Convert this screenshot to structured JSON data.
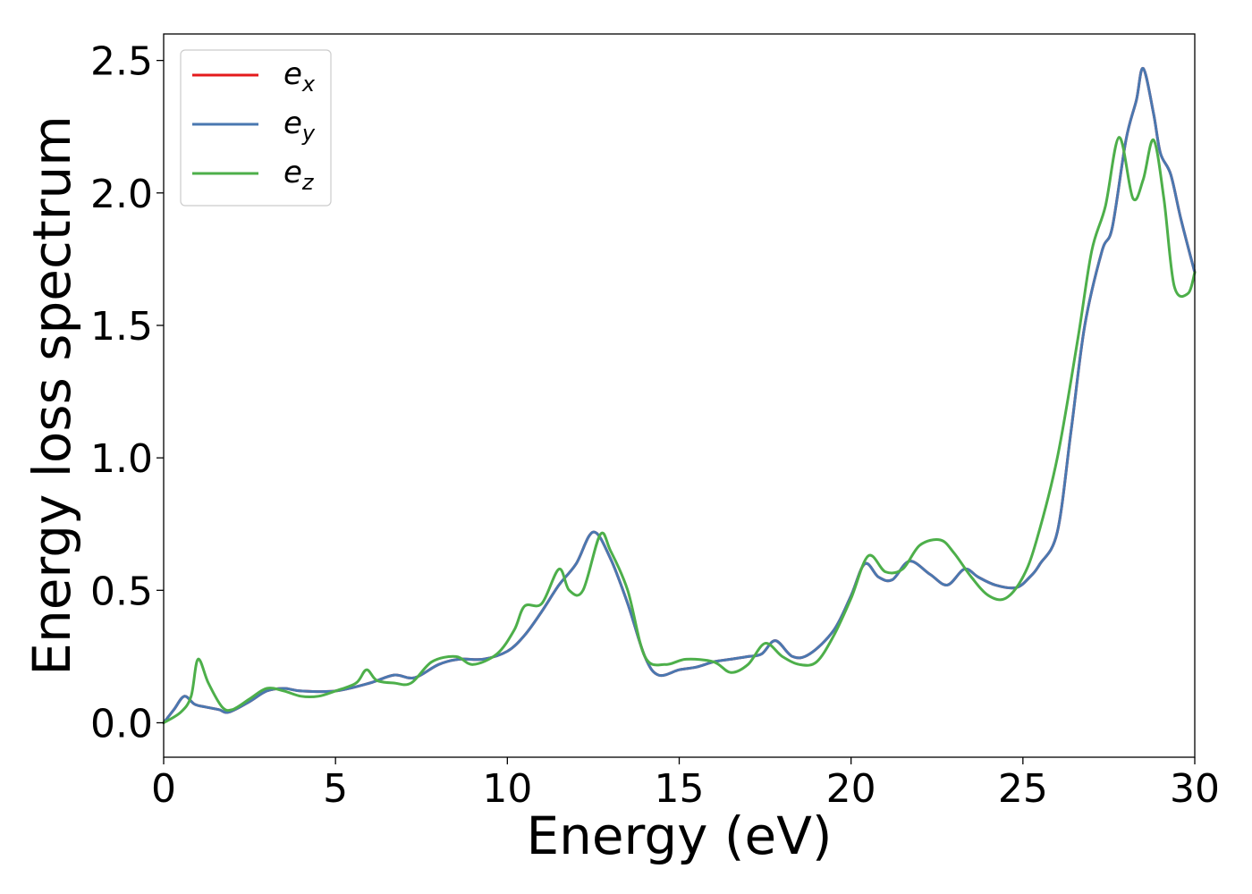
{
  "chart_data": {
    "type": "line",
    "xlabel": "Energy (eV)",
    "ylabel": "Energy loss spectrum",
    "xlim": [
      0,
      30
    ],
    "ylim": [
      -0.13,
      2.6
    ],
    "xticks": [
      0,
      5,
      10,
      15,
      20,
      25,
      30
    ],
    "xtick_labels": [
      "0",
      "5",
      "10",
      "15",
      "20",
      "25",
      "30"
    ],
    "yticks": [
      0.0,
      0.5,
      1.0,
      1.5,
      2.0,
      2.5
    ],
    "ytick_labels": [
      "0.0",
      "0.5",
      "1.0",
      "1.5",
      "2.0",
      "2.5"
    ],
    "grid": false,
    "legend_position": "top-left",
    "series": [
      {
        "name": "e_x",
        "legend_base": "e",
        "legend_sub": "x",
        "color": "#e41a1c",
        "x": [
          0,
          0.3,
          0.6,
          0.9,
          1.2,
          1.6,
          1.9,
          2.5,
          3.0,
          3.5,
          4.0,
          5.0,
          6.0,
          6.7,
          7.3,
          8.0,
          8.6,
          9.3,
          10.0,
          10.5,
          11.0,
          11.5,
          12.0,
          12.5,
          13.0,
          13.5,
          14.0,
          14.4,
          15.0,
          15.5,
          16.0,
          16.5,
          17.0,
          17.4,
          17.8,
          18.3,
          18.8,
          19.5,
          20.0,
          20.4,
          20.8,
          21.2,
          21.7,
          22.3,
          22.8,
          23.3,
          23.7,
          24.2,
          24.8,
          25.2,
          25.5,
          26.0,
          26.4,
          26.8,
          27.3,
          27.6,
          28.0,
          28.3,
          28.5,
          28.8,
          29.0,
          29.3,
          29.6,
          30.0
        ],
        "y": [
          0.0,
          0.05,
          0.1,
          0.07,
          0.06,
          0.05,
          0.04,
          0.08,
          0.12,
          0.13,
          0.12,
          0.12,
          0.15,
          0.18,
          0.17,
          0.22,
          0.24,
          0.24,
          0.27,
          0.33,
          0.42,
          0.52,
          0.6,
          0.72,
          0.62,
          0.45,
          0.25,
          0.18,
          0.2,
          0.21,
          0.23,
          0.24,
          0.25,
          0.26,
          0.31,
          0.25,
          0.26,
          0.35,
          0.48,
          0.6,
          0.55,
          0.54,
          0.61,
          0.56,
          0.52,
          0.58,
          0.55,
          0.52,
          0.51,
          0.55,
          0.6,
          0.72,
          1.1,
          1.5,
          1.78,
          1.87,
          2.2,
          2.35,
          2.47,
          2.3,
          2.15,
          2.07,
          1.9,
          1.7
        ]
      },
      {
        "name": "e_y",
        "legend_base": "e",
        "legend_sub": "y",
        "color": "#4a78b0",
        "x": [
          0,
          0.3,
          0.6,
          0.9,
          1.2,
          1.6,
          1.9,
          2.5,
          3.0,
          3.5,
          4.0,
          5.0,
          6.0,
          6.7,
          7.3,
          8.0,
          8.6,
          9.3,
          10.0,
          10.5,
          11.0,
          11.5,
          12.0,
          12.5,
          13.0,
          13.5,
          14.0,
          14.4,
          15.0,
          15.5,
          16.0,
          16.5,
          17.0,
          17.4,
          17.8,
          18.3,
          18.8,
          19.5,
          20.0,
          20.4,
          20.8,
          21.2,
          21.7,
          22.3,
          22.8,
          23.3,
          23.7,
          24.2,
          24.8,
          25.2,
          25.5,
          26.0,
          26.4,
          26.8,
          27.3,
          27.6,
          28.0,
          28.3,
          28.5,
          28.8,
          29.0,
          29.3,
          29.6,
          30.0
        ],
        "y": [
          0.0,
          0.05,
          0.1,
          0.07,
          0.06,
          0.05,
          0.04,
          0.08,
          0.12,
          0.13,
          0.12,
          0.12,
          0.15,
          0.18,
          0.17,
          0.22,
          0.24,
          0.24,
          0.27,
          0.33,
          0.42,
          0.52,
          0.6,
          0.72,
          0.62,
          0.45,
          0.25,
          0.18,
          0.2,
          0.21,
          0.23,
          0.24,
          0.25,
          0.26,
          0.31,
          0.25,
          0.26,
          0.35,
          0.48,
          0.6,
          0.55,
          0.54,
          0.61,
          0.56,
          0.52,
          0.58,
          0.55,
          0.52,
          0.51,
          0.55,
          0.6,
          0.72,
          1.1,
          1.5,
          1.78,
          1.87,
          2.2,
          2.35,
          2.47,
          2.3,
          2.15,
          2.07,
          1.9,
          1.7
        ]
      },
      {
        "name": "e_z",
        "legend_base": "e",
        "legend_sub": "z",
        "color": "#4daf4a",
        "x": [
          0,
          0.5,
          0.8,
          1.0,
          1.3,
          1.7,
          2.0,
          2.5,
          3.0,
          3.5,
          4.0,
          4.5,
          5.0,
          5.6,
          5.9,
          6.2,
          6.7,
          7.2,
          7.8,
          8.5,
          9.0,
          9.7,
          10.2,
          10.5,
          11.0,
          11.5,
          11.8,
          12.2,
          12.7,
          13.0,
          13.5,
          14.0,
          14.6,
          15.2,
          16.0,
          16.5,
          17.0,
          17.5,
          18.0,
          18.5,
          19.0,
          19.5,
          20.0,
          20.5,
          21.0,
          21.5,
          22.0,
          22.6,
          23.0,
          23.5,
          24.0,
          24.5,
          25.0,
          25.4,
          26.0,
          26.6,
          27.0,
          27.4,
          27.8,
          28.2,
          28.5,
          28.8,
          29.1,
          29.4,
          29.8,
          30.0
        ],
        "y": [
          0.0,
          0.04,
          0.1,
          0.24,
          0.15,
          0.06,
          0.05,
          0.09,
          0.13,
          0.12,
          0.1,
          0.1,
          0.12,
          0.15,
          0.2,
          0.16,
          0.15,
          0.15,
          0.23,
          0.25,
          0.22,
          0.26,
          0.35,
          0.44,
          0.45,
          0.58,
          0.5,
          0.5,
          0.71,
          0.65,
          0.5,
          0.25,
          0.22,
          0.24,
          0.23,
          0.19,
          0.22,
          0.3,
          0.25,
          0.22,
          0.23,
          0.33,
          0.47,
          0.63,
          0.57,
          0.58,
          0.67,
          0.69,
          0.64,
          0.55,
          0.48,
          0.47,
          0.55,
          0.69,
          1.0,
          1.45,
          1.78,
          1.95,
          2.21,
          1.98,
          2.05,
          2.2,
          1.98,
          1.65,
          1.62,
          1.7
        ]
      }
    ]
  }
}
